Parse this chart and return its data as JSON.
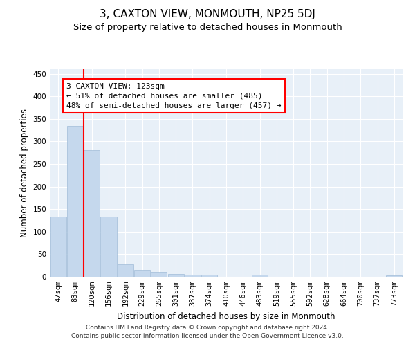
{
  "title": "3, CAXTON VIEW, MONMOUTH, NP25 5DJ",
  "subtitle": "Size of property relative to detached houses in Monmouth",
  "xlabel": "Distribution of detached houses by size in Monmouth",
  "ylabel": "Number of detached properties",
  "footer_line1": "Contains HM Land Registry data © Crown copyright and database right 2024.",
  "footer_line2": "Contains public sector information licensed under the Open Government Licence v3.0.",
  "categories": [
    "47sqm",
    "83sqm",
    "120sqm",
    "156sqm",
    "192sqm",
    "229sqm",
    "265sqm",
    "301sqm",
    "337sqm",
    "374sqm",
    "410sqm",
    "446sqm",
    "483sqm",
    "519sqm",
    "555sqm",
    "592sqm",
    "628sqm",
    "664sqm",
    "700sqm",
    "737sqm",
    "773sqm"
  ],
  "values": [
    133,
    335,
    280,
    133,
    27,
    15,
    10,
    6,
    5,
    4,
    0,
    0,
    4,
    0,
    0,
    0,
    0,
    0,
    0,
    0,
    3
  ],
  "bar_color": "#c5d8ed",
  "bar_edge_color": "#a0bcd8",
  "vline_color": "red",
  "vline_index": 2,
  "annotation_line1": "3 CAXTON VIEW: 123sqm",
  "annotation_line2": "← 51% of detached houses are smaller (485)",
  "annotation_line3": "48% of semi-detached houses are larger (457) →",
  "annotation_box_color": "white",
  "annotation_box_edge_color": "red",
  "ylim": [
    0,
    460
  ],
  "yticks": [
    0,
    50,
    100,
    150,
    200,
    250,
    300,
    350,
    400,
    450
  ],
  "background_color": "#e8f0f8",
  "grid_color": "#ffffff",
  "title_fontsize": 11,
  "subtitle_fontsize": 9.5,
  "tick_fontsize": 7.5,
  "ylabel_fontsize": 8.5,
  "xlabel_fontsize": 8.5,
  "annotation_fontsize": 8,
  "footer_fontsize": 6.5
}
